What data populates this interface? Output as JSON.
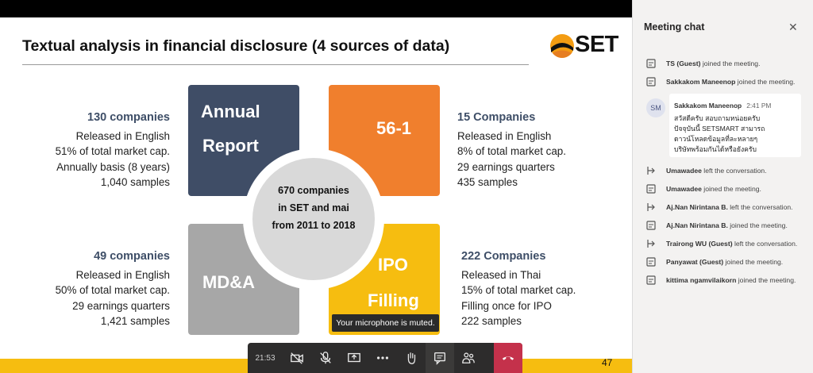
{
  "slide": {
    "title": "Textual analysis in financial disclosure (4 sources of data)",
    "logo_text": "SET",
    "page_number": "47",
    "quadrants": {
      "annual": {
        "line1": "Annual",
        "line2": "Report"
      },
      "form561": {
        "line1": "56-1"
      },
      "mda": {
        "line1": "MD&A"
      },
      "ipo": {
        "line1": "IPO",
        "line2": "Filling"
      }
    },
    "center": {
      "line1": "670 companies",
      "line2": "in SET and mai",
      "line3": "from 2011 to 2018"
    },
    "top_left": {
      "head": "130 companies",
      "l1": "Released in English",
      "l2": "51% of total market cap.",
      "l3": "Annually basis (8 years)",
      "l4": "1,040 samples"
    },
    "top_right": {
      "head": "15 Companies",
      "l1": "Released in English",
      "l2": "8% of total market cap.",
      "l3": "29 earnings quarters",
      "l4": "435 samples"
    },
    "bottom_left": {
      "head": "49 companies",
      "l1": "Released in English",
      "l2": "50% of total market cap.",
      "l3": "29 earnings quarters",
      "l4": "1,421 samples"
    },
    "bottom_right": {
      "head": "222 Companies",
      "l1": "Released in Thai",
      "l2": "15% of total market cap.",
      "l3": "Filling once for IPO",
      "l4": "222 samples"
    },
    "toast": "Your microphone is muted.",
    "colors": {
      "annual": "#3f4d66",
      "form561": "#f07f2d",
      "mda": "#a7a7a7",
      "ipo": "#f6bd10"
    }
  },
  "controls": {
    "timer": "21:53",
    "icons": [
      "camera-off-icon",
      "mic-off-icon",
      "share-icon",
      "more-icon",
      "raise-hand-icon",
      "chat-icon",
      "participants-icon",
      "hang-up-icon"
    ]
  },
  "chat": {
    "title": "Meeting chat",
    "events": [
      {
        "name": "TS (Guest)",
        "action": "joined the meeting."
      },
      {
        "name": "Sakkakom Maneenop",
        "action": "joined the meeting."
      },
      {
        "name": "Umawadee",
        "action": "left the conversation."
      },
      {
        "name": "Umawadee",
        "action": "joined the meeting."
      },
      {
        "name": "Aj.Nan Nirintana B.",
        "action": "left the conversation."
      },
      {
        "name": "Aj.Nan Nirintana B.",
        "action": "joined the meeting."
      },
      {
        "name": "Trairong WU (Guest)",
        "action": "left the conversation."
      },
      {
        "name": "Panyawat (Guest)",
        "action": "joined the meeting."
      },
      {
        "name": "kittima ngamvilaikorn",
        "action": "joined the meeting."
      }
    ],
    "message": {
      "initials": "SM",
      "author": "Sakkakom Maneenop",
      "time": "2:41 PM",
      "line1": "สวัสดีครับ สอบถามหน่อยครับ",
      "line2": "ปัจจุบันนี้ SETSMART สามารถ",
      "line3": "ดาวน์โหลดข้อมูลที่ละหลายๆ",
      "line4": "บริษัทพร้อมกันได้หรือยังครับ"
    }
  }
}
